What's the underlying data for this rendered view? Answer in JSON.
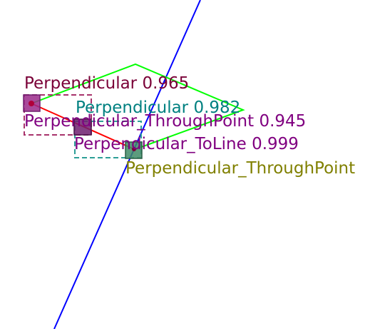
{
  "labels": {
    "perpendicular": "Perpendicular 0.965",
    "perpendicular_2": "Perpendicular 0.982",
    "through_point": "Perpendicular_ThroughPoint 0.945",
    "to_line": "Perpendicular_ToLine 0.999",
    "through_point_2": "Perpendicular_ThroughPoint"
  },
  "colors": {
    "line_blue": "#0000ff",
    "segment_red": "#ff0000",
    "polygon_green": "#00ff00",
    "maroon": "#7a0037",
    "teal": "#008080",
    "purple": "#800080",
    "olive": "#808000",
    "box_pink": "#a8336b",
    "box_teal": "#2e9f97",
    "marker_magenta": "#9a2a8a",
    "marker_purple": "#6e1f6e",
    "marker_green": "#3f8a66"
  }
}
